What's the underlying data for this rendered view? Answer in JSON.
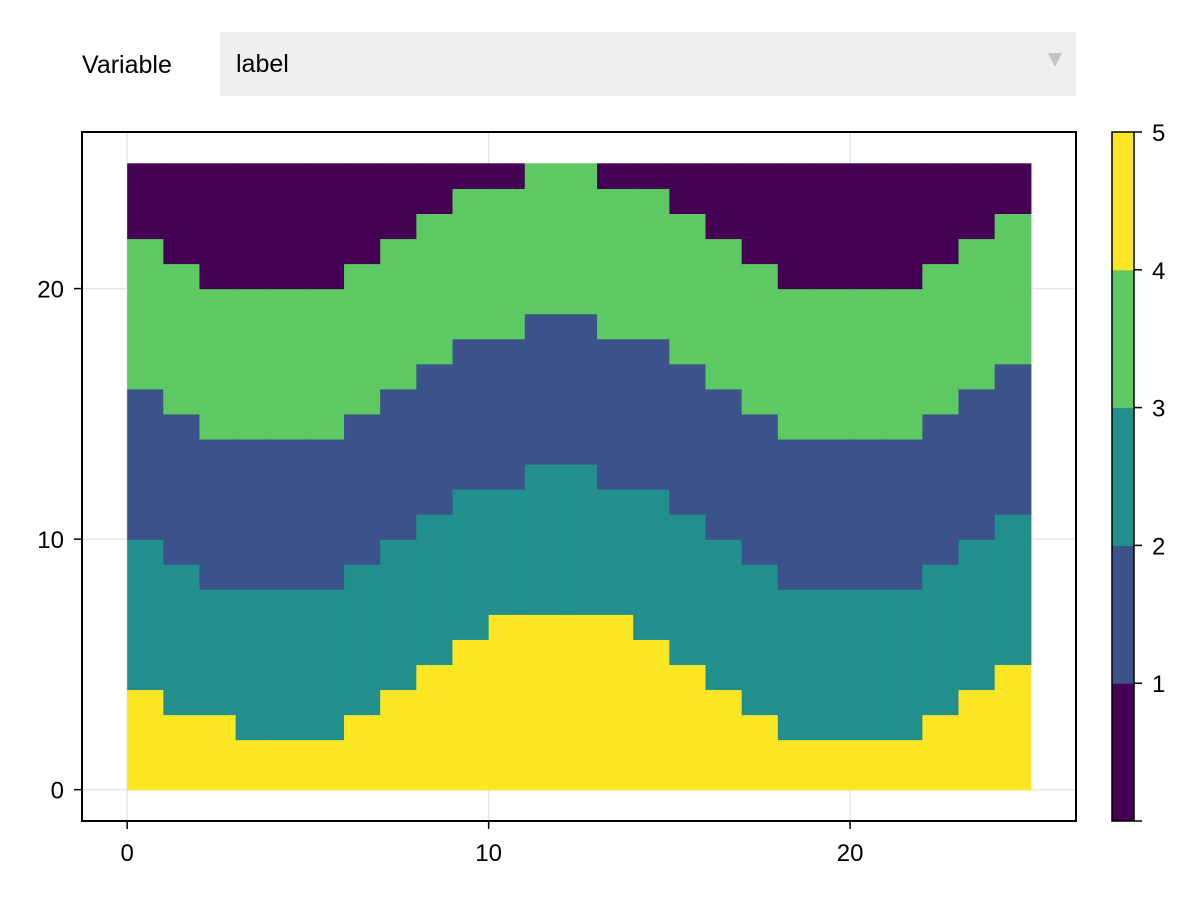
{
  "menu": {
    "label": "Variable",
    "selected": "label",
    "arrow_icon": "triangle-down-icon"
  },
  "chart_data": {
    "type": "heatmap",
    "title": "",
    "xlabel": "",
    "ylabel": "",
    "xlim": [
      -1.25,
      26.25
    ],
    "ylim": [
      -1.25,
      26.25
    ],
    "x_ticks": [
      0,
      10,
      20
    ],
    "y_ticks": [
      0,
      10,
      20
    ],
    "grid": true,
    "x_cell_edges": [
      0,
      1,
      2,
      3,
      4,
      5,
      6,
      7,
      8,
      9,
      10,
      11,
      12,
      13,
      14,
      15,
      16,
      17,
      18,
      19,
      20,
      21,
      22,
      23,
      24,
      25
    ],
    "y_cell_edges": [
      0,
      25
    ],
    "boundaries": [
      [
        4,
        3,
        3,
        2,
        2,
        2,
        3,
        4,
        5,
        6,
        7,
        7,
        7,
        7,
        6,
        5,
        4,
        3,
        2,
        2,
        2,
        2,
        3,
        4,
        5
      ],
      [
        10,
        9,
        8,
        8,
        8,
        8,
        9,
        10,
        11,
        12,
        12,
        13,
        13,
        12,
        12,
        11,
        10,
        9,
        8,
        8,
        8,
        8,
        9,
        10,
        11
      ],
      [
        16,
        15,
        14,
        14,
        14,
        14,
        15,
        16,
        17,
        18,
        18,
        19,
        19,
        18,
        18,
        17,
        16,
        15,
        14,
        14,
        14,
        14,
        15,
        16,
        17
      ],
      [
        22,
        21,
        20,
        20,
        20,
        20,
        21,
        22,
        23,
        24,
        24,
        25,
        25,
        24,
        24,
        23,
        22,
        21,
        20,
        20,
        20,
        20,
        21,
        22,
        23
      ]
    ],
    "band_values": [
      4.5,
      2.5,
      1.5,
      3.5,
      0.5
    ],
    "colorbar": {
      "limits": [
        0,
        5
      ],
      "ticks": [
        1,
        2,
        3,
        4,
        5
      ],
      "levels": [
        {
          "from": 0,
          "to": 1,
          "color": "#440154"
        },
        {
          "from": 1,
          "to": 2,
          "color": "#3b528b"
        },
        {
          "from": 2,
          "to": 3,
          "color": "#21908d"
        },
        {
          "from": 3,
          "to": 4,
          "color": "#5dc963"
        },
        {
          "from": 4,
          "to": 5,
          "color": "#fde725"
        }
      ]
    }
  }
}
